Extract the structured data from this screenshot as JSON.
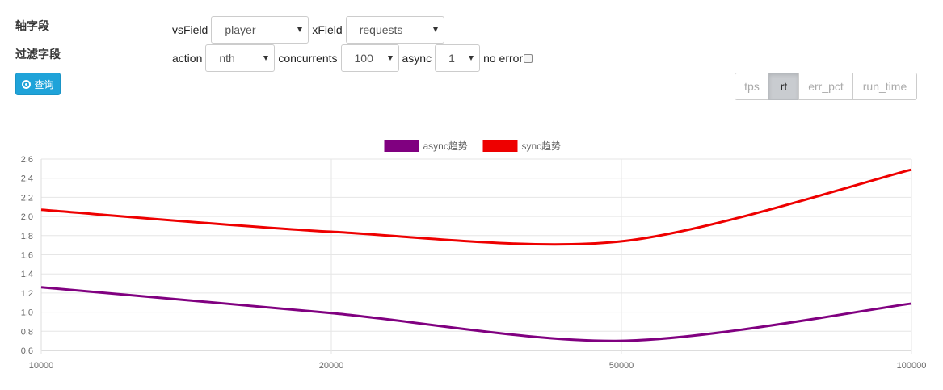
{
  "filters": {
    "axis_label": "轴字段",
    "filter_label": "过滤字段",
    "query_button": "查询",
    "vsField": {
      "label": "vsField",
      "value": "player"
    },
    "xField": {
      "label": "xField",
      "value": "requests"
    },
    "action": {
      "label": "action",
      "value": "nth"
    },
    "concurrents": {
      "label": "concurrents",
      "value": "100"
    },
    "async": {
      "label": "async",
      "value": "1"
    },
    "no_error": {
      "label": "no error",
      "checked": false
    }
  },
  "metric_tabs": [
    {
      "label": "tps",
      "active": false
    },
    {
      "label": "rt",
      "active": true
    },
    {
      "label": "err_pct",
      "active": false
    },
    {
      "label": "run_time",
      "active": false
    }
  ],
  "chart_data": {
    "type": "line",
    "categories": [
      "10000",
      "20000",
      "50000",
      "100000"
    ],
    "series": [
      {
        "name": "async趋势",
        "color": "#800080",
        "values": [
          1.26,
          0.99,
          0.7,
          1.09
        ]
      },
      {
        "name": "sync趋势",
        "color": "#ee0000",
        "values": [
          2.07,
          1.84,
          1.74,
          2.49
        ]
      }
    ],
    "ylim": [
      0.6,
      2.6
    ],
    "yticks": [
      "0.6",
      "0.8",
      "1.0",
      "1.2",
      "1.4",
      "1.6",
      "1.8",
      "2.0",
      "2.2",
      "2.4",
      "2.6"
    ],
    "grid": true,
    "legend": "top-center"
  }
}
